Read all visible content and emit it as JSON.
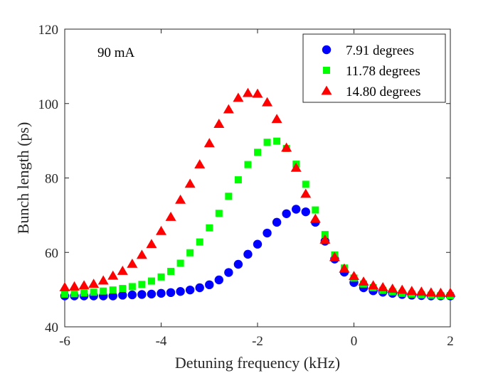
{
  "chart_data": {
    "type": "scatter",
    "title": "",
    "xlabel": "Detuning frequency (kHz)",
    "ylabel": "Bunch length (ps)",
    "xlim": [
      -6,
      2
    ],
    "ylim": [
      40,
      120
    ],
    "xticks": [
      -6,
      -4,
      -2,
      0,
      2
    ],
    "yticks": [
      40,
      60,
      80,
      100,
      120
    ],
    "grid": false,
    "legend_position": "top-right",
    "annotation": "90 mA",
    "series": [
      {
        "name": "7.91 degrees",
        "marker": "circle",
        "color": "#0000ff",
        "x": [
          -6.0,
          -5.8,
          -5.6,
          -5.4,
          -5.2,
          -5.0,
          -4.8,
          -4.6,
          -4.4,
          -4.2,
          -4.0,
          -3.8,
          -3.6,
          -3.4,
          -3.2,
          -3.0,
          -2.8,
          -2.6,
          -2.4,
          -2.2,
          -2.0,
          -1.8,
          -1.6,
          -1.4,
          -1.2,
          -1.0,
          -0.8,
          -0.6,
          -0.4,
          -0.2,
          0.0,
          0.2,
          0.4,
          0.6,
          0.8,
          1.0,
          1.2,
          1.4,
          1.6,
          1.8,
          2.0
        ],
        "y": [
          48.3,
          48.3,
          48.3,
          48.3,
          48.3,
          48.3,
          48.5,
          48.6,
          48.7,
          48.8,
          49.0,
          49.2,
          49.5,
          49.9,
          50.5,
          51.3,
          52.6,
          54.6,
          56.8,
          59.5,
          62.2,
          65.2,
          68.1,
          70.4,
          71.6,
          70.9,
          68.1,
          63.0,
          58.2,
          54.7,
          51.9,
          50.5,
          49.7,
          49.3,
          49.0,
          48.7,
          48.5,
          48.4,
          48.3,
          48.3,
          48.3
        ]
      },
      {
        "name": "11.78 degrees",
        "marker": "square",
        "color": "#00ff00",
        "x": [
          -6.0,
          -5.8,
          -5.6,
          -5.4,
          -5.2,
          -5.0,
          -4.8,
          -4.6,
          -4.4,
          -4.2,
          -4.0,
          -3.8,
          -3.6,
          -3.4,
          -3.2,
          -3.0,
          -2.8,
          -2.6,
          -2.4,
          -2.2,
          -2.0,
          -1.8,
          -1.6,
          -1.4,
          -1.2,
          -1.0,
          -0.8,
          -0.6,
          -0.4,
          -0.2,
          0.0,
          0.2,
          0.4,
          0.6,
          0.8,
          1.0,
          1.2,
          1.4,
          1.6,
          1.8,
          2.0
        ],
        "y": [
          48.8,
          48.9,
          49.1,
          49.3,
          49.6,
          49.9,
          50.3,
          50.8,
          51.4,
          52.3,
          53.4,
          54.9,
          57.1,
          59.9,
          62.8,
          66.6,
          70.5,
          75.1,
          79.5,
          83.6,
          86.9,
          89.6,
          89.9,
          87.9,
          83.7,
          78.3,
          71.4,
          64.8,
          59.3,
          55.8,
          53.1,
          51.5,
          50.5,
          49.8,
          49.4,
          49.0,
          48.8,
          48.6,
          48.5,
          48.4,
          48.4
        ]
      },
      {
        "name": "14.80 degrees",
        "marker": "triangle",
        "color": "#ff0000",
        "x": [
          -6.0,
          -5.8,
          -5.6,
          -5.4,
          -5.2,
          -5.0,
          -4.8,
          -4.6,
          -4.4,
          -4.2,
          -4.0,
          -3.8,
          -3.6,
          -3.4,
          -3.2,
          -3.0,
          -2.8,
          -2.6,
          -2.4,
          -2.2,
          -2.0,
          -1.8,
          -1.6,
          -1.4,
          -1.2,
          -1.0,
          -0.8,
          -0.6,
          -0.4,
          -0.2,
          0.0,
          0.2,
          0.4,
          0.6,
          0.8,
          1.0,
          1.2,
          1.4,
          1.6,
          1.8,
          2.0
        ],
        "y": [
          50.6,
          50.8,
          51.1,
          51.5,
          52.4,
          53.7,
          55.0,
          56.9,
          59.3,
          62.2,
          65.7,
          69.5,
          74.1,
          78.4,
          83.6,
          89.3,
          94.5,
          98.4,
          101.5,
          102.8,
          102.6,
          100.3,
          95.8,
          88.1,
          82.7,
          75.7,
          69.0,
          63.4,
          58.7,
          55.6,
          53.6,
          52.1,
          51.1,
          50.6,
          50.2,
          49.9,
          49.6,
          49.4,
          49.2,
          49.1,
          49.1
        ]
      }
    ]
  }
}
